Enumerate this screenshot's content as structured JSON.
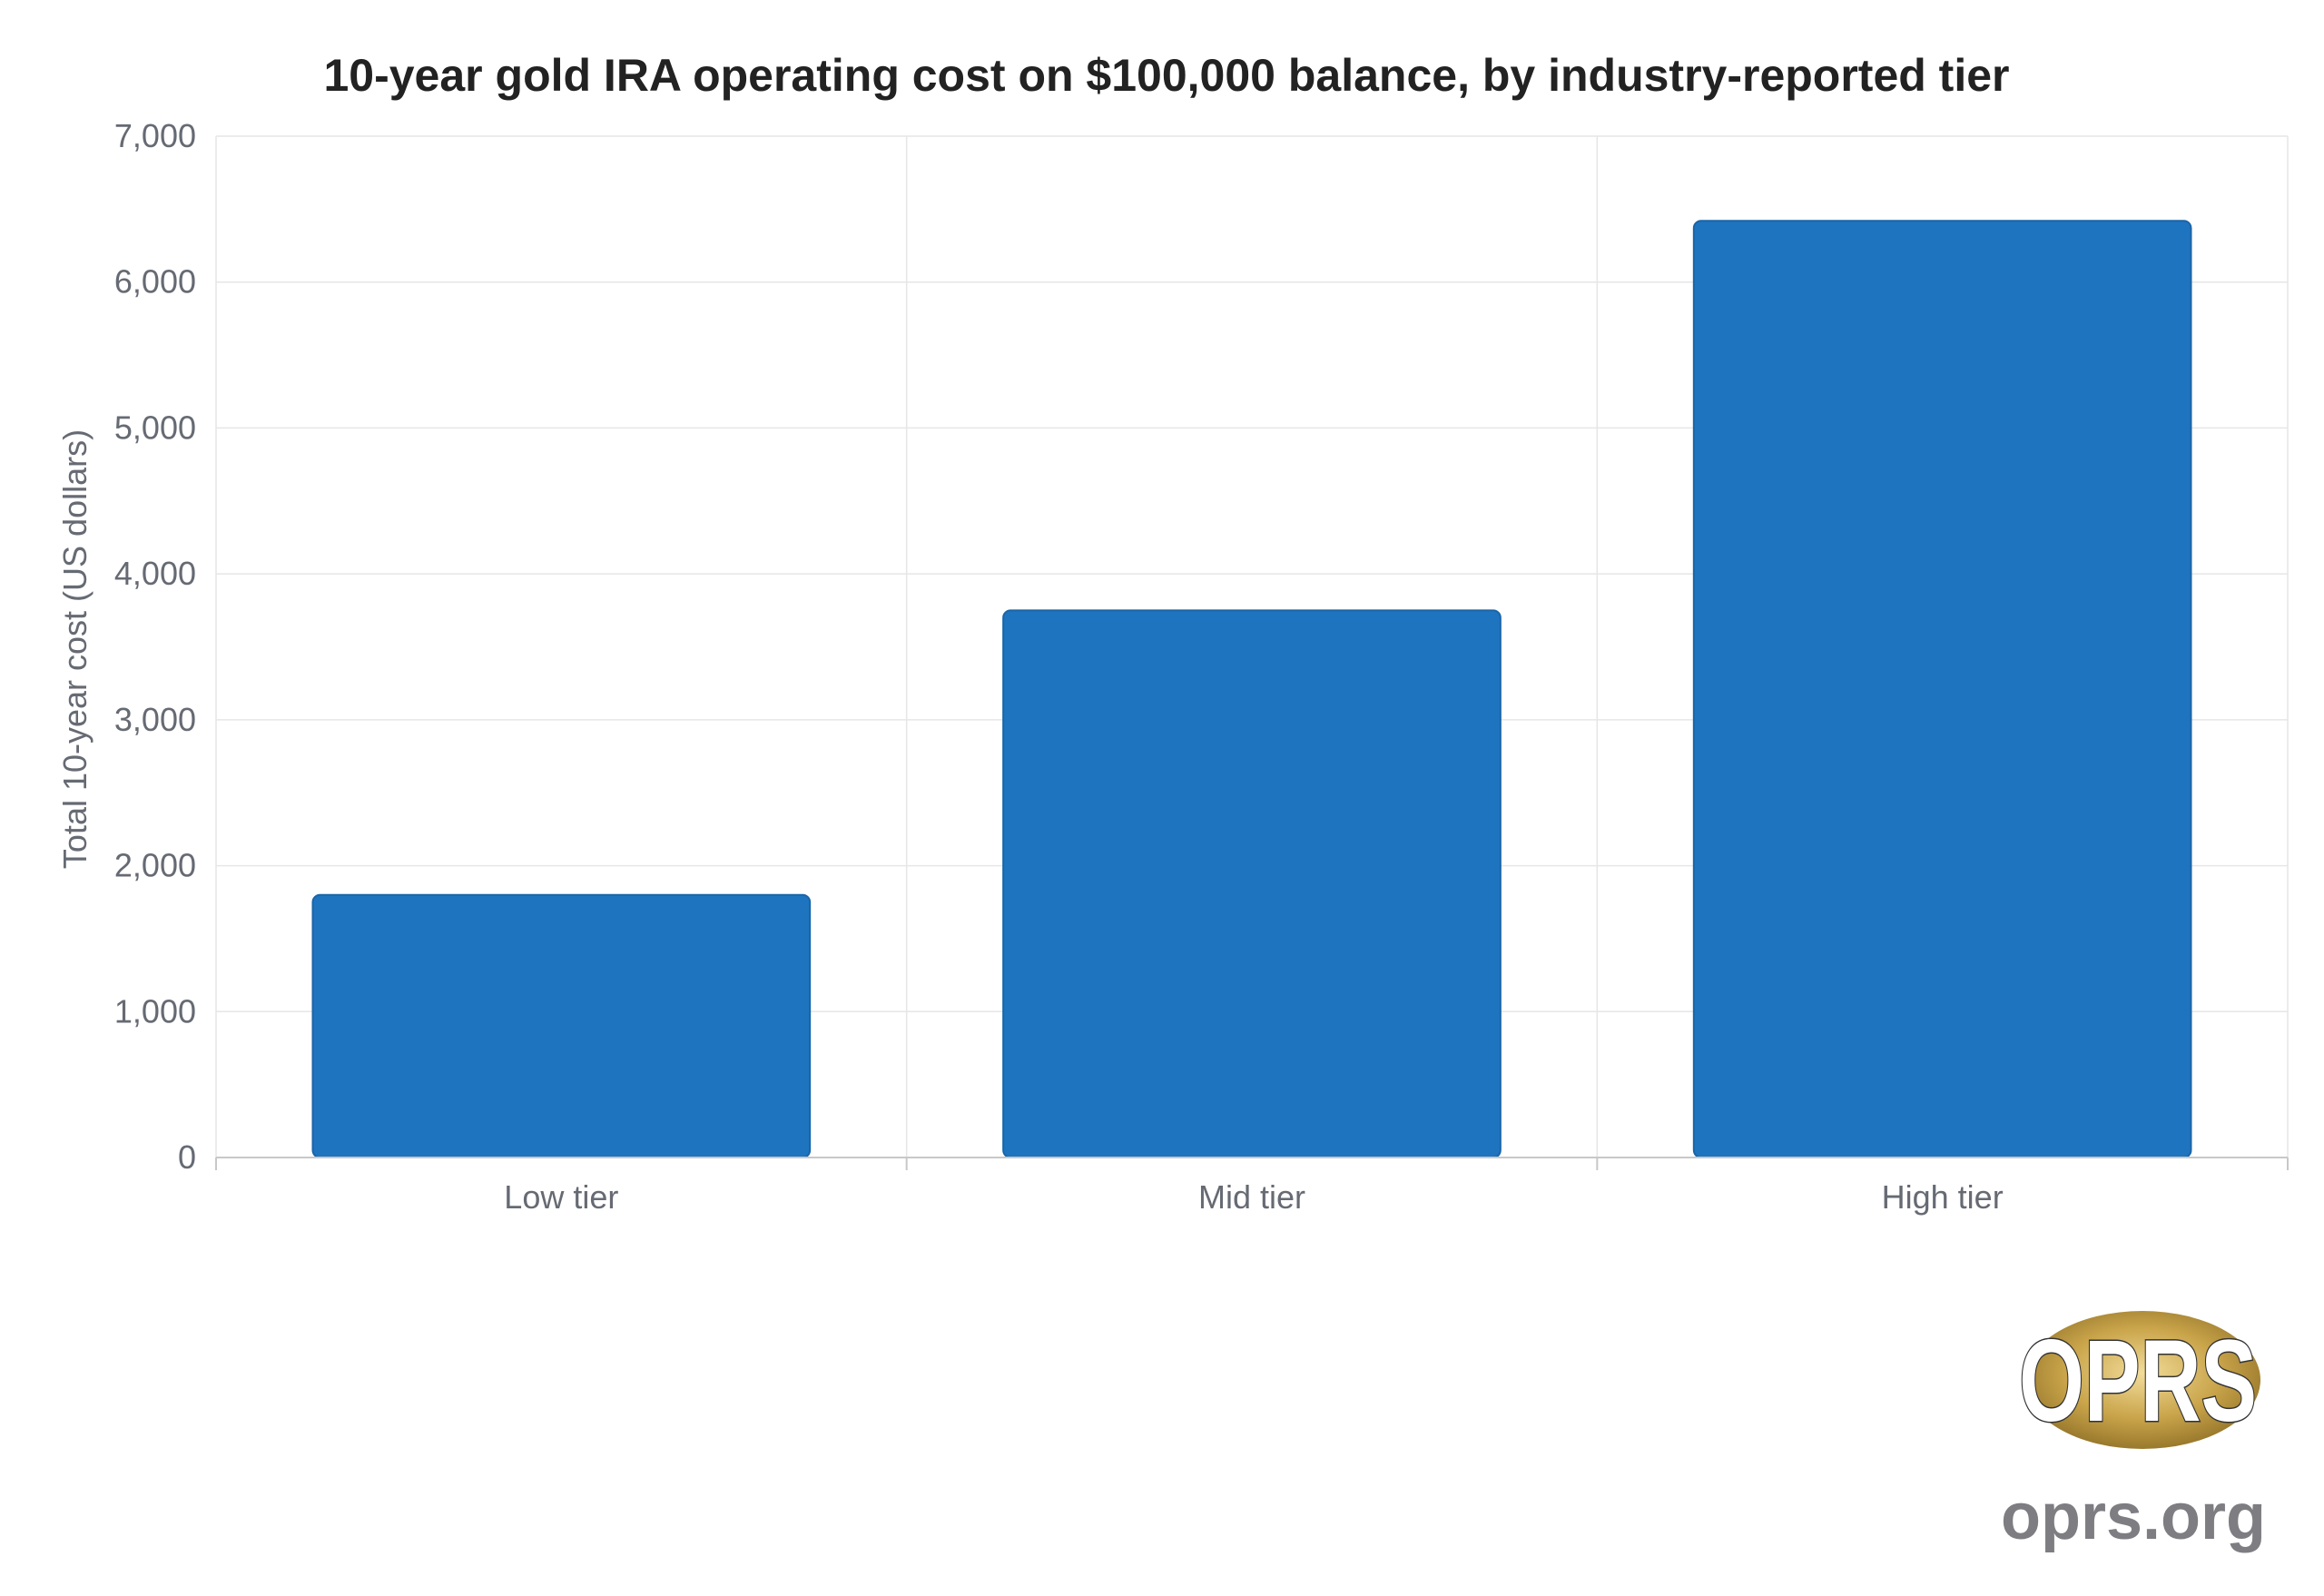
{
  "colors": {
    "bar": "#1f74bf",
    "bar_edge": "#1a65a8",
    "grid": "#e6e6e6",
    "axis": "#c8c8c8",
    "tick_text": "#666a73",
    "title_text": "#222222",
    "logo_gold": "#c9a44a",
    "site_text": "#7d7d82"
  },
  "chart_data": {
    "type": "bar",
    "title": "10-year gold IRA operating cost on $100,000 balance, by industry-reported tier",
    "xlabel": "",
    "ylabel": "Total 10-year cost (US dollars)",
    "categories": [
      "Low tier",
      "Mid tier",
      "High tier"
    ],
    "values": [
      1800,
      3750,
      6420
    ],
    "ylim": [
      0,
      7000
    ],
    "yticks": [
      0,
      1000,
      2000,
      3000,
      4000,
      5000,
      6000,
      7000
    ],
    "ytick_labels": [
      "0",
      "1,000",
      "2,000",
      "3,000",
      "4,000",
      "5,000",
      "6,000",
      "7,000"
    ],
    "grid": true,
    "legend": "none"
  },
  "branding": {
    "logo_text": "OPRS",
    "logo_icon": "oprs-logo-icon",
    "site": "oprs.org"
  }
}
